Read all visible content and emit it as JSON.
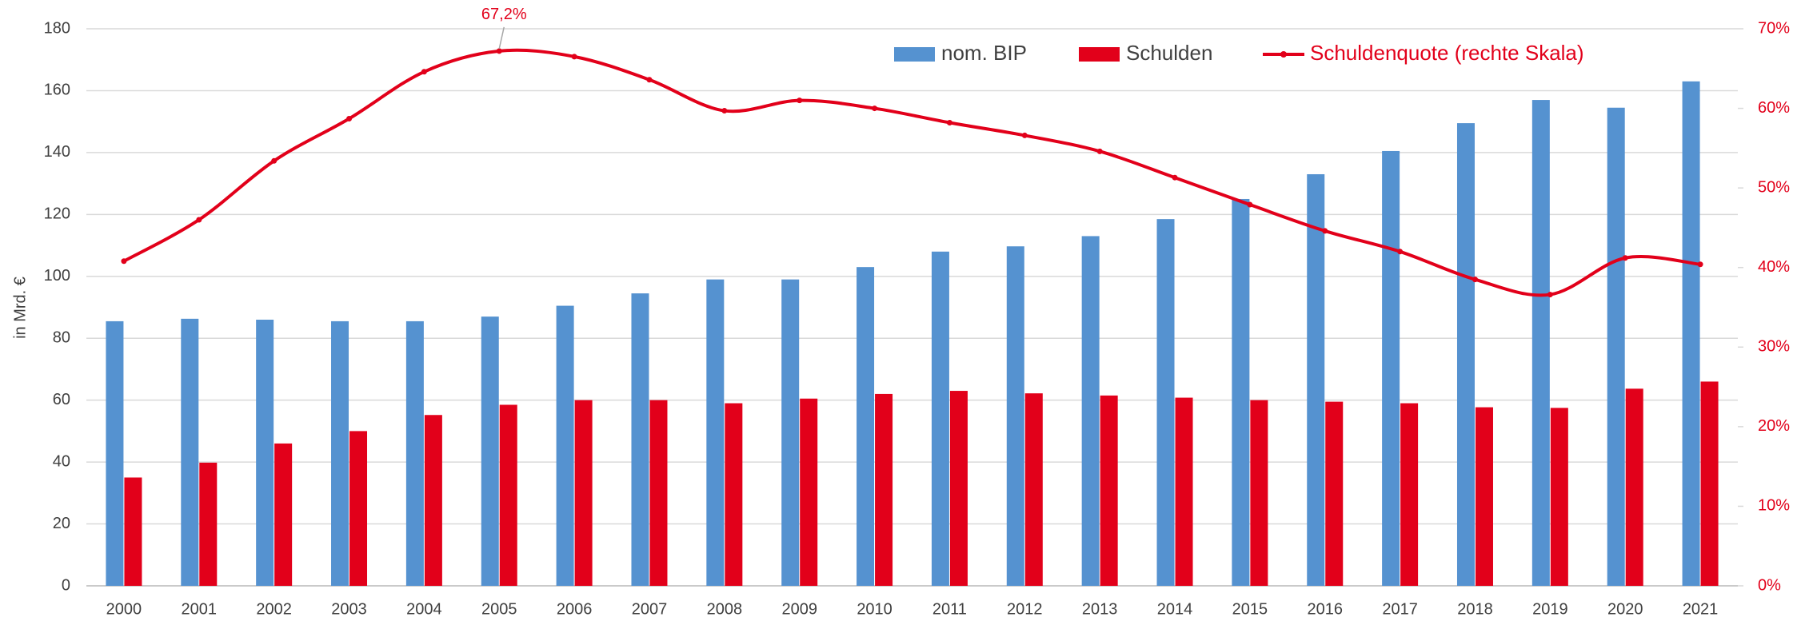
{
  "chart_data": {
    "type": "bar_line",
    "y_label": "in Mrd. €",
    "categories": [
      "2000",
      "2001",
      "2002",
      "2003",
      "2004",
      "2005",
      "2006",
      "2007",
      "2008",
      "2009",
      "2010",
      "2011",
      "2012",
      "2013",
      "2014",
      "2015",
      "2016",
      "2017",
      "2018",
      "2019",
      "2020",
      "2021"
    ],
    "series": [
      {
        "name": "nom. BIP",
        "color": "#5592d0",
        "type": "bar",
        "values": [
          85.5,
          86.3,
          86,
          85.5,
          85.5,
          87,
          90.5,
          94.5,
          99,
          99,
          103,
          108,
          109.7,
          113,
          118.5,
          125,
          133,
          140.5,
          149.5,
          157,
          154.5,
          163
        ]
      },
      {
        "name": "Schulden",
        "color": "#e2001a",
        "type": "bar",
        "values": [
          35,
          39.8,
          46,
          50,
          55.2,
          58.5,
          60,
          60,
          59,
          60.5,
          62,
          63,
          62.2,
          61.5,
          60.8,
          60,
          59.5,
          59,
          57.7,
          57.5,
          63.7,
          66
        ]
      },
      {
        "name": "Schuldenquote (rechte Skala)",
        "color": "#e2001a",
        "type": "line",
        "axis": "y2",
        "values": [
          40.8,
          46.0,
          53.4,
          58.7,
          64.6,
          67.2,
          66.5,
          63.6,
          59.7,
          61.0,
          60.0,
          58.2,
          56.6,
          54.6,
          51.3,
          47.9,
          44.6,
          42.0,
          38.5,
          36.6,
          41.2,
          40.4
        ],
        "value_labels": [
          null,
          null,
          null,
          null,
          null,
          "67,2%",
          null,
          null,
          null,
          null,
          null,
          null,
          null,
          null,
          null,
          null,
          null,
          null,
          null,
          null,
          null,
          null
        ]
      }
    ],
    "ylim": [
      0,
      180
    ],
    "yticks": [
      0,
      20,
      40,
      60,
      80,
      100,
      120,
      140,
      160,
      180
    ],
    "y2lim": [
      0,
      70
    ],
    "y2ticks": [
      {
        "value": 0,
        "label": "0%"
      },
      {
        "value": 10,
        "label": "10%"
      },
      {
        "value": 20,
        "label": "20%"
      },
      {
        "value": 30,
        "label": "30%"
      },
      {
        "value": 40,
        "label": "40%"
      },
      {
        "value": 50,
        "label": "50%"
      },
      {
        "value": 60,
        "label": "60%"
      },
      {
        "value": 70,
        "label": "70%"
      }
    ],
    "grid": true,
    "legend": "top-right"
  }
}
